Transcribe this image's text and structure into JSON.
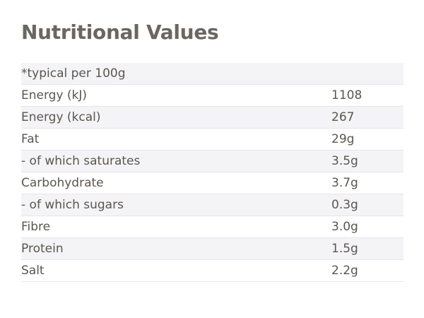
{
  "title": "Nutritional Values",
  "table": {
    "header": "*typical per 100g",
    "rows": [
      {
        "label": "Energy (kJ)",
        "value": "1108"
      },
      {
        "label": "Energy (kcal)",
        "value": "267"
      },
      {
        "label": "Fat",
        "value": "29g"
      },
      {
        "label": "- of which saturates",
        "value": "3.5g"
      },
      {
        "label": "Carbohydrate",
        "value": "3.7g"
      },
      {
        "label": "- of which sugars",
        "value": "0.3g"
      },
      {
        "label": "Fibre",
        "value": "3.0g"
      },
      {
        "label": "Protein",
        "value": "1.5g"
      },
      {
        "label": "Salt",
        "value": "2.2g"
      }
    ]
  }
}
